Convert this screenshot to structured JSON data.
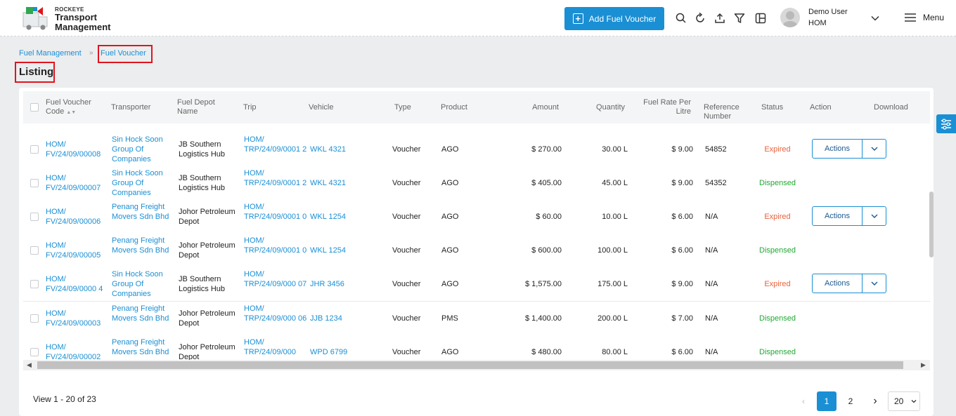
{
  "brand": {
    "small": "ROCKEYE",
    "line1": "Transport",
    "line2": "Management"
  },
  "header": {
    "add_button": "Add Fuel Voucher",
    "user_name": "Demo User",
    "user_org": "HOM",
    "menu_label": "Menu",
    "icons": [
      "search-icon",
      "refresh-icon",
      "upload-icon",
      "filter-icon",
      "columns-icon"
    ]
  },
  "breadcrumb": {
    "parent": "Fuel Management",
    "current": "Fuel Voucher"
  },
  "page_title": "Listing",
  "table": {
    "headers": {
      "code": "Fuel Voucher Code",
      "transporter": "Transporter",
      "depot": "Fuel Depot Name",
      "trip": "Trip",
      "vehicle": "Vehicle",
      "type": "Type",
      "product": "Product",
      "amount": "Amount",
      "quantity": "Quantity",
      "rate": "Fuel Rate Per Litre",
      "reference": "Reference Number",
      "status": "Status",
      "action": "Action",
      "download": "Download"
    },
    "rows": [
      {
        "code": "HOM/ FV/24/09/00008",
        "transporter": "Sin Hock Soon Group Of Companies",
        "depot": "JB Southern Logistics Hub",
        "trip": "HOM/ TRP/24/09/0001 2",
        "vehicle": "WKL 4321",
        "type": "Voucher",
        "product": "AGO",
        "amount": "$ 270.00",
        "quantity": "30.00 L",
        "rate": "$ 9.00",
        "reference": "54852",
        "status": "Expired",
        "action": "Actions"
      },
      {
        "code": "HOM/ FV/24/09/00007",
        "transporter": "Sin Hock Soon Group Of Companies",
        "depot": "JB Southern Logistics Hub",
        "trip": "HOM/ TRP/24/09/0001 2",
        "vehicle": "WKL 4321",
        "type": "Voucher",
        "product": "AGO",
        "amount": "$ 405.00",
        "quantity": "45.00 L",
        "rate": "$ 9.00",
        "reference": "54352",
        "status": "Dispensed",
        "action": ""
      },
      {
        "code": "HOM/ FV/24/09/00006",
        "transporter": "Penang Freight Movers Sdn Bhd",
        "depot": "Johor Petroleum Depot",
        "trip": "HOM/ TRP/24/09/0001 0",
        "vehicle": "WKL 1254",
        "type": "Voucher",
        "product": "AGO",
        "amount": "$ 60.00",
        "quantity": "10.00 L",
        "rate": "$ 6.00",
        "reference": "N/A",
        "status": "Expired",
        "action": "Actions"
      },
      {
        "code": "HOM/ FV/24/09/00005",
        "transporter": "Penang Freight Movers Sdn Bhd",
        "depot": "Johor Petroleum Depot",
        "trip": "HOM/ TRP/24/09/0001 0",
        "vehicle": "WKL 1254",
        "type": "Voucher",
        "product": "AGO",
        "amount": "$ 600.00",
        "quantity": "100.00 L",
        "rate": "$ 6.00",
        "reference": "N/A",
        "status": "Dispensed",
        "action": ""
      },
      {
        "code": "HOM/ FV/24/09/0000 4",
        "transporter": "Sin Hock Soon Group Of Companies",
        "depot": "JB Southern Logistics Hub",
        "trip": "HOM/ TRP/24/09/000 07",
        "vehicle": "JHR 3456",
        "type": "Voucher",
        "product": "AGO",
        "amount": "$ 1,575.00",
        "quantity": "175.00 L",
        "rate": "$ 9.00",
        "reference": "N/A",
        "status": "Expired",
        "action": "Actions"
      },
      {
        "code": "HOM/ FV/24/09/00003",
        "transporter": "Penang Freight Movers Sdn Bhd",
        "depot": "Johor Petroleum Depot",
        "trip": "HOM/ TRP/24/09/000 06",
        "vehicle": "JJB 1234",
        "type": "Voucher",
        "product": "PMS",
        "amount": "$ 1,400.00",
        "quantity": "200.00 L",
        "rate": "$ 7.00",
        "reference": "N/A",
        "status": "Dispensed",
        "action": ""
      },
      {
        "code": "HOM/ FV/24/09/00002",
        "transporter": "Penang Freight Movers Sdn Bhd",
        "depot": "Johor Petroleum Depot",
        "trip": "HOM/ TRP/24/09/000",
        "vehicle": "WPD 6799",
        "type": "Voucher",
        "product": "AGO",
        "amount": "$ 480.00",
        "quantity": "80.00 L",
        "rate": "$ 6.00",
        "reference": "N/A",
        "status": "Dispensed",
        "action": ""
      }
    ]
  },
  "footer": {
    "summary": "View 1 - 20 of 23",
    "pages": [
      "1",
      "2"
    ],
    "page_size": "20"
  },
  "colors": {
    "accent": "#1a8fd4",
    "expired": "#e8613c",
    "dispensed": "#21a833",
    "highlight": "#e0141e"
  }
}
